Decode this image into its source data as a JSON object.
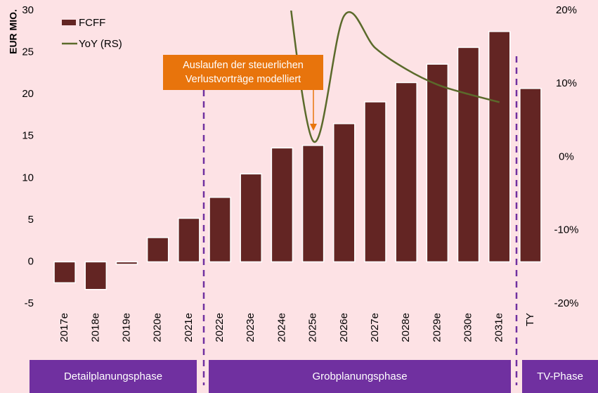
{
  "chart_data": {
    "type": "bar",
    "y_axis_label": "EUR MIO.",
    "categories": [
      "2017e",
      "2018e",
      "2019e",
      "2020e",
      "2021e",
      "2022e",
      "2023e",
      "2024e",
      "2025e",
      "2026e",
      "2027e",
      "2028e",
      "2029e",
      "2030e",
      "2031e",
      "TY"
    ],
    "series": [
      {
        "name": "FCFF",
        "type": "bar",
        "color": "#632523",
        "values": [
          -2.5,
          -3.3,
          -0.3,
          2.9,
          5.2,
          7.7,
          10.5,
          13.6,
          13.9,
          16.5,
          19.1,
          21.4,
          23.6,
          25.6,
          27.5,
          20.7
        ]
      },
      {
        "name": "YoY (RS)",
        "type": "line",
        "axis": "y2",
        "color": "#5b6a2b",
        "values": [
          null,
          null,
          null,
          null,
          null,
          null,
          null,
          30,
          2.2,
          19.3,
          14.9,
          12.0,
          9.9,
          8.6,
          7.5,
          null
        ]
      }
    ],
    "ylim": [
      -5,
      30
    ],
    "yticks": [
      -5,
      0,
      5,
      10,
      15,
      20,
      25,
      30
    ],
    "y2lim": [
      -20,
      20
    ],
    "y2ticks": [
      {
        "value": -20,
        "label": "-20%"
      },
      {
        "value": -10,
        "label": "-10%"
      },
      {
        "value": 0,
        "label": "0%"
      },
      {
        "value": 10,
        "label": "10%"
      },
      {
        "value": 20,
        "label": "20%"
      }
    ],
    "annotation": {
      "lines": [
        "Auslaufen der steuerlichen",
        "Verlustvorträge modelliert"
      ],
      "color": "#e8740c"
    },
    "phases": [
      "Detailplanungsphase",
      "Grobplanungsphase",
      "TV-Phase"
    ],
    "phase_color": "#7030a0"
  }
}
